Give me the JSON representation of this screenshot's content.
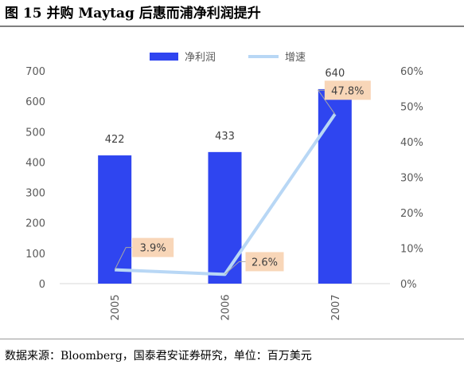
{
  "figure": {
    "title": "图 15  并购 Maytag 后惠而浦净利润提升",
    "source": "数据来源：Bloomberg，国泰君安证券研究，单位：百万美元"
  },
  "colors": {
    "bar": "#2F45F0",
    "line": "#B8D7F5",
    "label_box": "#F8D6B8"
  },
  "chart_data": {
    "type": "bar+line",
    "categories": [
      "2005",
      "2006",
      "2007"
    ],
    "series": [
      {
        "name": "净利润",
        "type": "bar",
        "axis": "left",
        "values": [
          422,
          433,
          640
        ],
        "labels": [
          "422",
          "433",
          "640"
        ]
      },
      {
        "name": "增速",
        "type": "line",
        "axis": "right",
        "values": [
          3.9,
          2.6,
          47.8
        ],
        "labels": [
          "3.9%",
          "2.6%",
          "47.8%"
        ]
      }
    ],
    "y_left": {
      "min": 0,
      "max": 700,
      "ticks": [
        "0",
        "100",
        "200",
        "300",
        "400",
        "500",
        "600",
        "700"
      ]
    },
    "y_right": {
      "min": 0,
      "max": 60,
      "ticks": [
        "0%",
        "10%",
        "20%",
        "30%",
        "40%",
        "50%",
        "60%"
      ]
    },
    "legend_position": "top-center",
    "grid": false
  }
}
